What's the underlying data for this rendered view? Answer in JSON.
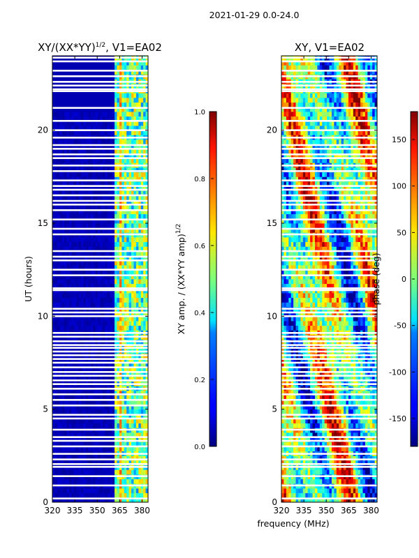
{
  "suptitle": "2021-01-29 0.0-24.0",
  "common_xlabel": "frequency (MHz)",
  "chart_data": [
    {
      "type": "heatmap",
      "title_main": "XY/(XX*YY)",
      "title_sup": "1/2",
      "title_tail": ", V1=EA02",
      "xlabel": "",
      "ylabel": "UT (hours)",
      "xlim": [
        320,
        384
      ],
      "ylim": [
        0,
        24
      ],
      "xticks": [
        320,
        335,
        350,
        365,
        380
      ],
      "yticks": [
        0,
        5,
        10,
        15,
        20
      ],
      "colorbar": {
        "label_main": "XY amp. / (XX*YY amp)",
        "label_sup": "1/2",
        "range": [
          0.0,
          1.0
        ],
        "ticks": [
          "0.0",
          "0.2",
          "0.4",
          "0.6",
          "0.8",
          "1.0"
        ],
        "colormap": "jet"
      },
      "description": "amplitude mostly near 0 below 361 MHz; elevated 0.3-0.7 between 361 and 384 MHz"
    },
    {
      "type": "heatmap",
      "title": "XY, V1=EA02",
      "xlabel": "",
      "ylabel": "",
      "xlim": [
        320,
        384
      ],
      "ylim": [
        0,
        24
      ],
      "xticks": [
        320,
        335,
        350,
        365,
        380
      ],
      "yticks": [
        0,
        5,
        10,
        15,
        20
      ],
      "colorbar": {
        "label": "phase (deg)",
        "range": [
          -180,
          180
        ],
        "ticks": [
          "-150",
          "-100",
          "-50",
          "0",
          "50",
          "100",
          "150"
        ],
        "colormap": "jet"
      },
      "description": "phase varies across full -180 to 180 range"
    }
  ],
  "flagged_rows_hours": [
    0.2,
    0.9,
    1.4,
    1.9,
    2.05,
    2.3,
    2.6,
    3.0,
    3.3,
    3.5,
    3.9,
    4.5,
    4.7,
    5.2,
    5.5,
    5.8,
    6.1,
    6.35,
    6.55,
    6.8,
    7.0,
    7.25,
    7.5,
    7.7,
    7.9,
    8.1,
    8.3,
    8.45,
    8.65,
    8.9,
    9.1,
    10.0,
    10.2,
    10.4,
    11.4,
    11.5,
    12.2,
    12.5,
    13.0,
    13.2,
    13.5,
    14.4,
    14.7,
    15.2,
    15.7,
    16.0,
    16.2,
    16.5,
    16.8,
    17.0,
    17.3,
    17.8,
    18.1,
    18.5,
    18.7,
    19.0,
    19.2,
    19.6,
    20.0,
    20.5,
    21.2,
    22.1,
    22.2,
    22.4,
    22.6,
    22.9,
    23.2,
    23.7,
    23.9
  ]
}
